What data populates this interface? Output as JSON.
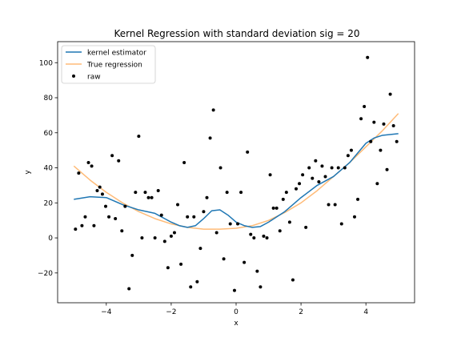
{
  "chart_data": {
    "type": "scatter",
    "title": "Kernel Regression with standard deviation sig = 20",
    "xlabel": "x",
    "ylabel": "y",
    "xlim": [
      -5.5,
      5.5
    ],
    "ylim": [
      -37,
      112
    ],
    "x_ticks": [
      -4,
      -2,
      0,
      2,
      4
    ],
    "y_ticks": [
      -20,
      0,
      20,
      40,
      60,
      80,
      100
    ],
    "x_tick_labels": [
      "−4",
      "−2",
      "0",
      "2",
      "4"
    ],
    "y_tick_labels": [
      "−20",
      "0",
      "20",
      "40",
      "60",
      "80",
      "100"
    ],
    "grid": false,
    "legend_position": "top-left",
    "series": [
      {
        "name": "kernel estimator",
        "kind": "line",
        "color": "#1f77b4",
        "x": [
          -5,
          -4.5,
          -4,
          -3.5,
          -3,
          -2.5,
          -2,
          -1.75,
          -1.5,
          -1.25,
          -1,
          -0.75,
          -0.5,
          -0.25,
          0,
          0.25,
          0.5,
          0.75,
          1,
          1.5,
          2,
          2.5,
          3,
          3.5,
          4,
          4.25,
          4.5,
          5
        ],
        "y": [
          22,
          23.5,
          23,
          19,
          16,
          14,
          9,
          7,
          6,
          7,
          11,
          15.5,
          16,
          13,
          9,
          7,
          6,
          6.5,
          9,
          15,
          23,
          30,
          35,
          43,
          54,
          57,
          58.5,
          59.5
        ]
      },
      {
        "name": "True regression",
        "kind": "line",
        "color": "#ffbb78",
        "x": [
          -5,
          -4.5,
          -4,
          -3.5,
          -3,
          -2.5,
          -2,
          -1.5,
          -1,
          -0.5,
          0,
          0.5,
          1,
          1.5,
          2,
          2.5,
          3,
          3.5,
          4,
          4.5,
          5
        ],
        "y": [
          41,
          33,
          26,
          20,
          15,
          11,
          8,
          6,
          5,
          5,
          5.5,
          7,
          10,
          14.5,
          20,
          27,
          35,
          43,
          52,
          61,
          71
        ]
      },
      {
        "name": "raw",
        "kind": "points",
        "color": "#000000",
        "points": [
          [
            -4.95,
            5
          ],
          [
            -4.85,
            37
          ],
          [
            -4.75,
            7
          ],
          [
            -4.65,
            12
          ],
          [
            -4.55,
            43
          ],
          [
            -4.45,
            41
          ],
          [
            -4.38,
            7
          ],
          [
            -4.28,
            27
          ],
          [
            -4.2,
            29
          ],
          [
            -4.12,
            25
          ],
          [
            -4.02,
            18
          ],
          [
            -3.92,
            12
          ],
          [
            -3.82,
            47
          ],
          [
            -3.72,
            11
          ],
          [
            -3.62,
            44
          ],
          [
            -3.52,
            4
          ],
          [
            -3.42,
            18
          ],
          [
            -3.3,
            -29
          ],
          [
            -3.2,
            -10
          ],
          [
            -3.1,
            26
          ],
          [
            -3.0,
            58
          ],
          [
            -2.9,
            0
          ],
          [
            -2.8,
            26
          ],
          [
            -2.7,
            23
          ],
          [
            -2.6,
            23
          ],
          [
            -2.5,
            0
          ],
          [
            -2.4,
            27
          ],
          [
            -2.3,
            13
          ],
          [
            -2.2,
            -2
          ],
          [
            -2.1,
            -17
          ],
          [
            -2.0,
            1
          ],
          [
            -1.9,
            3
          ],
          [
            -1.8,
            19
          ],
          [
            -1.7,
            -15
          ],
          [
            -1.6,
            43
          ],
          [
            -1.5,
            12
          ],
          [
            -1.4,
            -28
          ],
          [
            -1.3,
            12
          ],
          [
            -1.2,
            -25
          ],
          [
            -1.1,
            -6
          ],
          [
            -1.0,
            15
          ],
          [
            -0.9,
            23
          ],
          [
            -0.8,
            57
          ],
          [
            -0.7,
            73
          ],
          [
            -0.6,
            3
          ],
          [
            -0.48,
            40
          ],
          [
            -0.38,
            -12
          ],
          [
            -0.28,
            26
          ],
          [
            -0.18,
            8
          ],
          [
            -0.05,
            -30
          ],
          [
            0.05,
            8
          ],
          [
            0.15,
            26
          ],
          [
            0.25,
            -14
          ],
          [
            0.35,
            49
          ],
          [
            0.45,
            2
          ],
          [
            0.55,
            0
          ],
          [
            0.65,
            -19
          ],
          [
            0.75,
            -28
          ],
          [
            0.85,
            1
          ],
          [
            0.95,
            0
          ],
          [
            1.05,
            36
          ],
          [
            1.15,
            17
          ],
          [
            1.25,
            17
          ],
          [
            1.35,
            4
          ],
          [
            1.45,
            22
          ],
          [
            1.55,
            26
          ],
          [
            1.65,
            9
          ],
          [
            1.75,
            -24
          ],
          [
            1.85,
            28
          ],
          [
            1.95,
            31
          ],
          [
            2.05,
            36
          ],
          [
            2.15,
            6
          ],
          [
            2.25,
            40
          ],
          [
            2.35,
            34
          ],
          [
            2.45,
            44
          ],
          [
            2.55,
            32
          ],
          [
            2.65,
            41
          ],
          [
            2.75,
            35
          ],
          [
            2.85,
            19
          ],
          [
            2.95,
            40
          ],
          [
            3.05,
            19
          ],
          [
            3.15,
            40
          ],
          [
            3.25,
            8
          ],
          [
            3.35,
            40
          ],
          [
            3.45,
            47
          ],
          [
            3.55,
            50
          ],
          [
            3.65,
            12
          ],
          [
            3.75,
            22
          ],
          [
            3.85,
            68
          ],
          [
            3.95,
            75
          ],
          [
            4.05,
            103
          ],
          [
            4.15,
            55
          ],
          [
            4.25,
            66
          ],
          [
            4.35,
            31
          ],
          [
            4.45,
            50
          ],
          [
            4.55,
            65
          ],
          [
            4.65,
            39
          ],
          [
            4.75,
            82
          ],
          [
            4.85,
            64
          ],
          [
            4.95,
            55
          ]
        ]
      }
    ]
  }
}
